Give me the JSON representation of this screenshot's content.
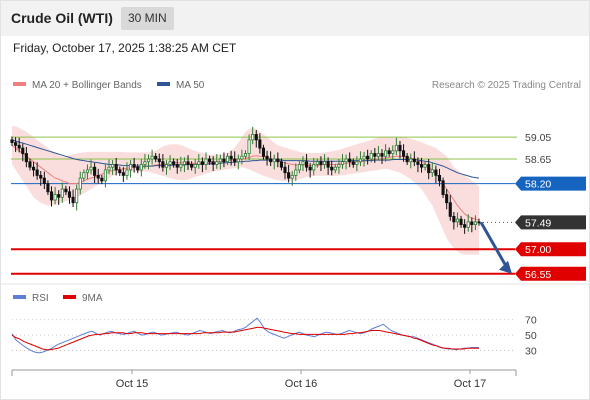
{
  "header": {
    "title": "Crude Oil (WTI)",
    "timeframe": "30 MIN"
  },
  "datetime": "Friday, October 17, 2025 1:38:25 AM CET",
  "legend": {
    "items": [
      {
        "label": "MA 20 + Bollinger Bands",
        "color": "#f08080"
      },
      {
        "label": "MA 50",
        "color": "#2f5597"
      }
    ],
    "credit": "Research © 2025 Trading Central"
  },
  "rsi_legend": {
    "items": [
      {
        "label": "RSI",
        "color": "#5b7fd6"
      },
      {
        "label": "9MA",
        "color": "#e00000"
      }
    ]
  },
  "colors": {
    "green_levels": "#8bc34a",
    "blue_level": "#1565c0",
    "red_levels": "#e00000",
    "last_price": "#333333",
    "arrow": "#2f5597",
    "bollinger_fill": "#f9d6d6",
    "ma20": "#f08080",
    "ma50": "#2f5597",
    "candle_up": "#2e7d32",
    "candle_down": "#111111",
    "rsi": "#5b7fd6",
    "rsi_ma": "#e00000"
  },
  "chart_data": [
    {
      "type": "candlestick",
      "x_ticks": [
        "Oct 15",
        "Oct 16",
        "Oct 17"
      ],
      "ylim": [
        56.4,
        59.4
      ],
      "levels": [
        {
          "label": "59.05",
          "value": 59.05,
          "kind": "resistance"
        },
        {
          "label": "58.65",
          "value": 58.65,
          "kind": "resistance"
        },
        {
          "label": "58.20",
          "value": 58.2,
          "kind": "pivot"
        },
        {
          "label": "57.49",
          "value": 57.49,
          "kind": "last"
        },
        {
          "label": "57.00",
          "value": 57.0,
          "kind": "support"
        },
        {
          "label": "56.55",
          "value": 56.55,
          "kind": "support"
        }
      ],
      "closes": [
        58.95,
        58.9,
        58.85,
        58.75,
        58.6,
        58.5,
        58.45,
        58.35,
        58.3,
        58.2,
        58.05,
        57.9,
        58.0,
        57.95,
        58.1,
        58.05,
        57.95,
        57.85,
        58.1,
        58.3,
        58.4,
        58.45,
        58.5,
        58.35,
        58.3,
        58.25,
        58.45,
        58.5,
        58.55,
        58.45,
        58.4,
        58.35,
        58.45,
        58.55,
        58.5,
        58.45,
        58.55,
        58.6,
        58.65,
        58.7,
        58.65,
        58.6,
        58.5,
        58.55,
        58.6,
        58.55,
        58.5,
        58.55,
        58.6,
        58.55,
        58.5,
        58.55,
        58.6,
        58.55,
        58.65,
        58.6,
        58.55,
        58.6,
        58.65,
        58.6,
        58.7,
        58.65,
        58.6,
        58.65,
        58.7,
        58.75,
        59.0,
        59.1,
        59.0,
        58.85,
        58.7,
        58.65,
        58.6,
        58.65,
        58.6,
        58.5,
        58.4,
        58.3,
        58.35,
        58.45,
        58.55,
        58.6,
        58.5,
        58.45,
        58.55,
        58.6,
        58.55,
        58.6,
        58.5,
        58.45,
        58.5,
        58.55,
        58.6,
        58.65,
        58.6,
        58.55,
        58.6,
        58.65,
        58.7,
        58.65,
        58.75,
        58.7,
        58.75,
        58.7,
        58.8,
        58.75,
        58.8,
        58.9,
        58.8,
        58.7,
        58.6,
        58.65,
        58.6,
        58.55,
        58.5,
        58.55,
        58.4,
        58.45,
        58.35,
        58.25,
        58.0,
        57.85,
        57.6,
        57.5,
        57.55,
        57.45,
        57.4,
        57.5,
        57.45,
        57.5,
        57.49
      ],
      "ma20": [
        58.9,
        58.85,
        58.8,
        58.75,
        58.7,
        58.65,
        58.6,
        58.55,
        58.5,
        58.45,
        58.4,
        58.35,
        58.3,
        58.28,
        58.25,
        58.23,
        58.2,
        58.2,
        58.2,
        58.22,
        58.25,
        58.28,
        58.3,
        58.32,
        58.35,
        58.37,
        58.4,
        58.42,
        58.44,
        58.45,
        58.46,
        58.47,
        58.48,
        58.49,
        58.5,
        58.5,
        58.5,
        58.51,
        58.52,
        58.53,
        58.54,
        58.55,
        58.55,
        58.56,
        58.57,
        58.58,
        58.58,
        58.58,
        58.58,
        58.57,
        58.57,
        58.57,
        58.57,
        58.58,
        58.58,
        58.58,
        58.59,
        58.6,
        58.6,
        58.61,
        58.62,
        58.63,
        58.63,
        58.64,
        58.65,
        58.66,
        58.68,
        58.7,
        58.71,
        58.7,
        58.69,
        58.68,
        58.66,
        58.64,
        58.62,
        58.6,
        58.58,
        58.56,
        58.55,
        58.54,
        58.54,
        58.54,
        58.54,
        58.53,
        58.53,
        58.53,
        58.54,
        58.55,
        58.55,
        58.55,
        58.55,
        58.56,
        58.57,
        58.57,
        58.58,
        58.58,
        58.59,
        58.6,
        58.61,
        58.62,
        58.63,
        58.64,
        58.65,
        58.66,
        58.67,
        58.68,
        58.69,
        58.7,
        58.7,
        58.69,
        58.68,
        58.67,
        58.65,
        58.63,
        58.6,
        58.56,
        58.5,
        58.45,
        58.38,
        58.3,
        58.2,
        58.1,
        58.0,
        57.9,
        57.8,
        57.72,
        57.65,
        57.6,
        57.57,
        57.55,
        57.53
      ],
      "ma50": [
        59.0,
        58.98,
        58.96,
        58.94,
        58.92,
        58.9,
        58.88,
        58.86,
        58.84,
        58.82,
        58.8,
        58.78,
        58.76,
        58.74,
        58.72,
        58.7,
        58.68,
        58.66,
        58.64,
        58.63,
        58.62,
        58.61,
        58.6,
        58.59,
        58.58,
        58.57,
        58.56,
        58.55,
        58.55,
        58.54,
        58.54,
        58.53,
        58.53,
        58.53,
        58.52,
        58.52,
        58.52,
        58.52,
        58.52,
        58.52,
        58.53,
        58.53,
        58.53,
        58.53,
        58.53,
        58.54,
        58.54,
        58.54,
        58.54,
        58.55,
        58.55,
        58.55,
        58.55,
        58.56,
        58.56,
        58.56,
        58.57,
        58.57,
        58.57,
        58.58,
        58.58,
        58.59,
        58.59,
        58.6,
        58.6,
        58.61,
        58.61,
        58.62,
        58.62,
        58.63,
        58.63,
        58.63,
        58.63,
        58.63,
        58.63,
        58.63,
        58.62,
        58.62,
        58.62,
        58.62,
        58.62,
        58.62,
        58.62,
        58.61,
        58.61,
        58.61,
        58.61,
        58.61,
        58.61,
        58.61,
        58.61,
        58.61,
        58.61,
        58.61,
        58.62,
        58.62,
        58.62,
        58.62,
        58.62,
        58.62,
        58.62,
        58.63,
        58.63,
        58.63,
        58.63,
        58.63,
        58.64,
        58.64,
        58.64,
        58.64,
        58.64,
        58.64,
        58.64,
        58.63,
        58.62,
        58.61,
        58.6,
        58.58,
        58.56,
        58.54,
        58.52,
        58.49,
        58.46,
        58.43,
        58.4,
        58.38,
        58.36,
        58.34,
        58.32,
        58.31,
        58.3
      ],
      "bb_upper": [
        59.25,
        59.25,
        59.22,
        59.18,
        59.15,
        59.1,
        59.05,
        59.0,
        58.95,
        58.9,
        58.85,
        58.8,
        58.75,
        58.72,
        58.7,
        58.7,
        58.72,
        58.74,
        58.75,
        58.76,
        58.77,
        58.78,
        58.78,
        58.78,
        58.78,
        58.78,
        58.78,
        58.78,
        58.78,
        58.78,
        58.78,
        58.78,
        58.77,
        58.77,
        58.77,
        58.77,
        58.77,
        58.77,
        58.77,
        58.78,
        58.8,
        58.84,
        58.88,
        58.9,
        58.92,
        58.92,
        58.92,
        58.9,
        58.88,
        58.85,
        58.82,
        58.8,
        58.78,
        58.76,
        58.74,
        58.73,
        58.73,
        58.73,
        58.73,
        58.74,
        58.76,
        58.8,
        58.86,
        58.95,
        59.05,
        59.15,
        59.2,
        59.22,
        59.2,
        59.15,
        59.1,
        59.05,
        59.0,
        58.95,
        58.9,
        58.88,
        58.86,
        58.84,
        58.82,
        58.8,
        58.78,
        58.77,
        58.76,
        58.76,
        58.76,
        58.76,
        58.76,
        58.77,
        58.78,
        58.79,
        58.8,
        58.82,
        58.84,
        58.86,
        58.88,
        58.9,
        58.92,
        58.94,
        58.96,
        58.98,
        59.0,
        59.02,
        59.04,
        59.05,
        59.06,
        59.06,
        59.06,
        59.06,
        59.06,
        59.05,
        59.04,
        59.02,
        59.0,
        58.98,
        58.96,
        58.93,
        58.9,
        58.88,
        58.85,
        58.8,
        58.75,
        58.7,
        58.6,
        58.5,
        58.45,
        58.4,
        58.35,
        58.3,
        58.25,
        58.2,
        58.15
      ],
      "bb_lower": [
        58.55,
        58.45,
        58.35,
        58.25,
        58.15,
        58.05,
        57.95,
        57.9,
        57.85,
        57.82,
        57.8,
        57.8,
        57.82,
        57.84,
        57.86,
        57.88,
        57.9,
        57.92,
        57.95,
        57.98,
        58.02,
        58.06,
        58.1,
        58.14,
        58.18,
        58.22,
        58.26,
        58.3,
        58.34,
        58.36,
        58.38,
        58.4,
        58.41,
        58.42,
        58.42,
        58.42,
        58.42,
        58.42,
        58.42,
        58.4,
        58.38,
        58.36,
        58.34,
        58.32,
        58.3,
        58.28,
        58.27,
        58.26,
        58.26,
        58.27,
        58.3,
        58.32,
        58.34,
        58.36,
        58.38,
        58.4,
        58.42,
        58.43,
        58.44,
        58.45,
        58.46,
        58.47,
        58.48,
        58.49,
        58.5,
        58.48,
        58.46,
        58.43,
        58.4,
        58.37,
        58.34,
        58.32,
        58.3,
        58.28,
        58.26,
        58.25,
        58.24,
        58.24,
        58.25,
        58.26,
        58.28,
        58.3,
        58.32,
        58.33,
        58.34,
        58.34,
        58.34,
        58.34,
        58.34,
        58.34,
        58.34,
        58.34,
        58.35,
        58.36,
        58.37,
        58.38,
        58.39,
        58.4,
        58.41,
        58.42,
        58.43,
        58.44,
        58.45,
        58.46,
        58.47,
        58.46,
        58.44,
        58.42,
        58.4,
        58.36,
        58.32,
        58.28,
        58.22,
        58.16,
        58.1,
        58.0,
        57.9,
        57.8,
        57.65,
        57.5,
        57.35,
        57.2,
        57.1,
        57.02,
        56.96,
        56.92,
        56.9,
        56.9,
        56.9,
        56.9,
        56.9
      ]
    },
    {
      "type": "line",
      "title": "RSI",
      "ylim": [
        10,
        80
      ],
      "y_ticks": [
        70,
        50,
        30
      ],
      "rsi": [
        52,
        44,
        40,
        36,
        33,
        30,
        28,
        27,
        28,
        30,
        32,
        35,
        38,
        40,
        42,
        44,
        46,
        48,
        50,
        52,
        54,
        55,
        52,
        50,
        52,
        54,
        55,
        53,
        52,
        51,
        52,
        54,
        55,
        52,
        50,
        51,
        53,
        54,
        52,
        50,
        51,
        52,
        53,
        54,
        52,
        51,
        50,
        52,
        54,
        56,
        55,
        53,
        52,
        54,
        55,
        56,
        54,
        53,
        55,
        57,
        58,
        60,
        64,
        68,
        72,
        66,
        58,
        54,
        52,
        50,
        48,
        46,
        48,
        50,
        52,
        54,
        52,
        50,
        49,
        48,
        50,
        52,
        54,
        53,
        52,
        51,
        52,
        54,
        56,
        55,
        53,
        52,
        53,
        55,
        58,
        60,
        62,
        64,
        60,
        56,
        54,
        52,
        50,
        49,
        48,
        48,
        46,
        44,
        42,
        40,
        38,
        36,
        34,
        33,
        32,
        32,
        31,
        32,
        33,
        33,
        34,
        34,
        34
      ],
      "rsi_ma": [
        50,
        47,
        45,
        42,
        40,
        38,
        36,
        34,
        32,
        31,
        31,
        32,
        33,
        35,
        37,
        39,
        41,
        43,
        45,
        47,
        49,
        50,
        51,
        51,
        52,
        52,
        53,
        53,
        53,
        53,
        52,
        52,
        53,
        53,
        53,
        52,
        52,
        52,
        52,
        52,
        52,
        52,
        52,
        52,
        52,
        52,
        52,
        52,
        52,
        52,
        53,
        53,
        53,
        53,
        53,
        54,
        54,
        54,
        54,
        55,
        56,
        57,
        58,
        59,
        60,
        60,
        59,
        58,
        57,
        56,
        55,
        54,
        53,
        52,
        52,
        51,
        51,
        51,
        51,
        51,
        51,
        51,
        51,
        51,
        51,
        51,
        51,
        51,
        52,
        52,
        53,
        53,
        54,
        55,
        56,
        56,
        56,
        55,
        54,
        53,
        52,
        51,
        50,
        49,
        48,
        46,
        45,
        43,
        41,
        39,
        37,
        36,
        34,
        33,
        33,
        32,
        32,
        32,
        32,
        33,
        33,
        33,
        33
      ]
    }
  ]
}
